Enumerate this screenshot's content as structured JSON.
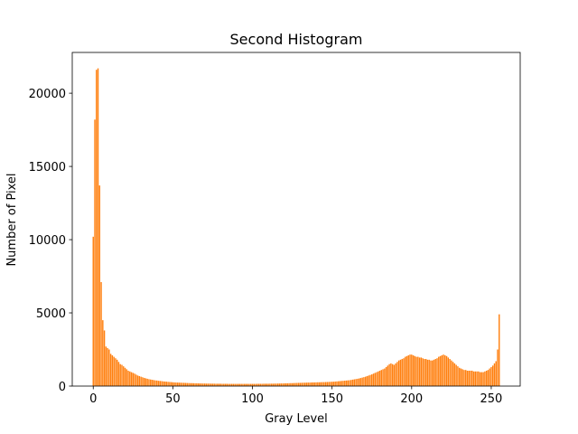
{
  "chart_data": {
    "type": "bar",
    "title": "Second Histogram",
    "x_label": "Gray Level",
    "y_label": "Number of Pixel",
    "color": "#ff7f0e",
    "x": [
      0,
      1,
      2,
      3,
      4,
      5,
      6,
      7,
      8,
      9,
      10,
      11,
      12,
      13,
      14,
      15,
      16,
      17,
      18,
      19,
      20,
      21,
      22,
      23,
      24,
      25,
      26,
      27,
      28,
      29,
      30,
      31,
      32,
      33,
      34,
      35,
      36,
      37,
      38,
      39,
      40,
      41,
      42,
      43,
      44,
      45,
      46,
      47,
      48,
      49,
      50,
      51,
      52,
      53,
      54,
      55,
      56,
      57,
      58,
      59,
      60,
      61,
      62,
      63,
      64,
      65,
      66,
      67,
      68,
      69,
      70,
      71,
      72,
      73,
      74,
      75,
      76,
      77,
      78,
      79,
      80,
      81,
      82,
      83,
      84,
      85,
      86,
      87,
      88,
      89,
      90,
      91,
      92,
      93,
      94,
      95,
      96,
      97,
      98,
      99,
      100,
      101,
      102,
      103,
      104,
      105,
      106,
      107,
      108,
      109,
      110,
      111,
      112,
      113,
      114,
      115,
      116,
      117,
      118,
      119,
      120,
      121,
      122,
      123,
      124,
      125,
      126,
      127,
      128,
      129,
      130,
      131,
      132,
      133,
      134,
      135,
      136,
      137,
      138,
      139,
      140,
      141,
      142,
      143,
      144,
      145,
      146,
      147,
      148,
      149,
      150,
      151,
      152,
      153,
      154,
      155,
      156,
      157,
      158,
      159,
      160,
      161,
      162,
      163,
      164,
      165,
      166,
      167,
      168,
      169,
      170,
      171,
      172,
      173,
      174,
      175,
      176,
      177,
      178,
      179,
      180,
      181,
      182,
      183,
      184,
      185,
      186,
      187,
      188,
      189,
      190,
      191,
      192,
      193,
      194,
      195,
      196,
      197,
      198,
      199,
      200,
      201,
      202,
      203,
      204,
      205,
      206,
      207,
      208,
      209,
      210,
      211,
      212,
      213,
      214,
      215,
      216,
      217,
      218,
      219,
      220,
      221,
      222,
      223,
      224,
      225,
      226,
      227,
      228,
      229,
      230,
      231,
      232,
      233,
      234,
      235,
      236,
      237,
      238,
      239,
      240,
      241,
      242,
      243,
      244,
      245,
      246,
      247,
      248,
      249,
      250,
      251,
      252,
      253,
      254,
      255
    ],
    "values": [
      10200,
      18200,
      21600,
      21700,
      13700,
      7100,
      4500,
      3800,
      2700,
      2600,
      2500,
      2200,
      2100,
      2000,
      1900,
      1800,
      1650,
      1500,
      1450,
      1350,
      1250,
      1150,
      1050,
      1000,
      950,
      900,
      850,
      780,
      720,
      680,
      640,
      600,
      560,
      530,
      500,
      470,
      450,
      430,
      410,
      390,
      380,
      360,
      350,
      340,
      320,
      310,
      300,
      290,
      280,
      270,
      260,
      250,
      245,
      240,
      235,
      230,
      225,
      220,
      215,
      210,
      205,
      200,
      200,
      195,
      190,
      190,
      185,
      180,
      180,
      175,
      175,
      170,
      170,
      170,
      165,
      165,
      165,
      160,
      160,
      160,
      160,
      155,
      155,
      155,
      155,
      150,
      150,
      150,
      150,
      150,
      150,
      150,
      150,
      150,
      150,
      150,
      150,
      150,
      150,
      150,
      150,
      150,
      150,
      155,
      155,
      155,
      155,
      160,
      160,
      160,
      160,
      165,
      165,
      165,
      170,
      170,
      175,
      175,
      180,
      180,
      185,
      190,
      190,
      195,
      200,
      200,
      205,
      210,
      215,
      220,
      220,
      225,
      230,
      230,
      235,
      240,
      240,
      245,
      250,
      250,
      255,
      260,
      260,
      265,
      270,
      270,
      275,
      280,
      285,
      290,
      295,
      300,
      310,
      320,
      330,
      340,
      350,
      360,
      370,
      380,
      390,
      400,
      420,
      440,
      460,
      480,
      500,
      520,
      550,
      580,
      610,
      640,
      680,
      720,
      760,
      800,
      850,
      900,
      950,
      1000,
      1050,
      1100,
      1150,
      1200,
      1300,
      1400,
      1500,
      1550,
      1500,
      1450,
      1550,
      1650,
      1750,
      1800,
      1850,
      1900,
      2000,
      2050,
      2100,
      2150,
      2150,
      2100,
      2050,
      2000,
      2000,
      1950,
      1950,
      1900,
      1850,
      1850,
      1800,
      1800,
      1750,
      1750,
      1800,
      1850,
      1900,
      2000,
      2050,
      2100,
      2150,
      2100,
      2050,
      1950,
      1850,
      1750,
      1650,
      1550,
      1450,
      1350,
      1250,
      1200,
      1150,
      1100,
      1100,
      1050,
      1050,
      1050,
      1050,
      1000,
      1000,
      1000,
      1000,
      950,
      950,
      950,
      1000,
      1050,
      1100,
      1200,
      1300,
      1400,
      1550,
      1700,
      2500,
      4900
    ],
    "xlim": [
      -13.19,
      268.19
    ],
    "xticks": [
      0,
      50,
      100,
      150,
      200,
      250
    ],
    "ylim": [
      0,
      22785
    ],
    "yticks": [
      0,
      5000,
      10000,
      15000,
      20000
    ]
  }
}
